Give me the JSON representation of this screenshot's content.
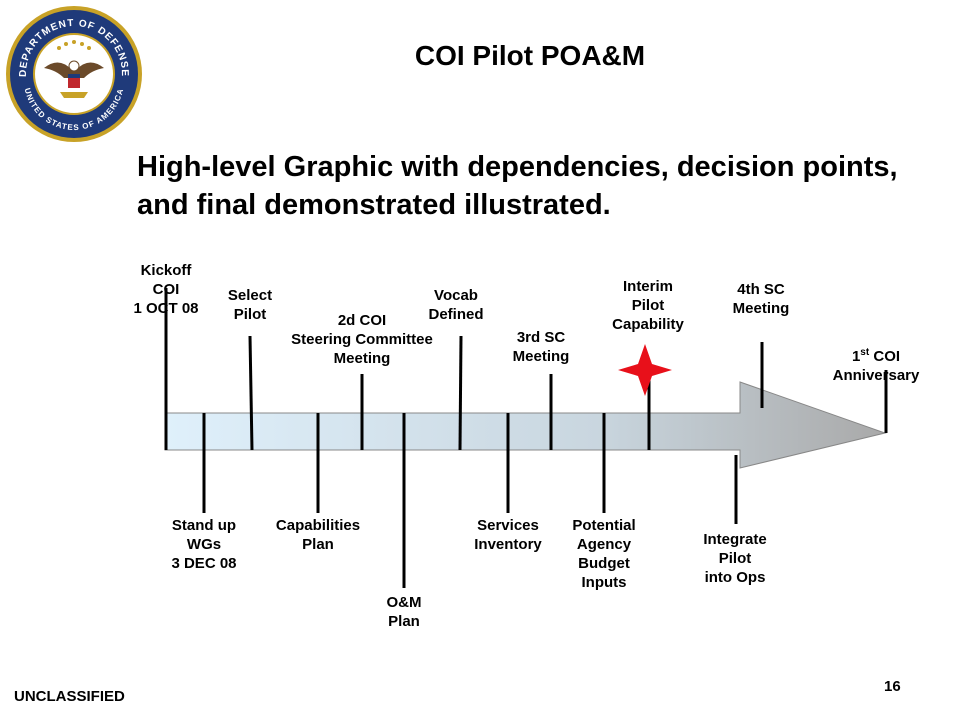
{
  "header": {
    "title": "COI Pilot POA&M",
    "subtitle": "High-level Graphic with dependencies, decision points, and final demonstrated illustrated."
  },
  "seal": {
    "text_top": "DEPARTMENT OF DEFENSE",
    "text_bottom": "UNITED STATES OF AMERICA"
  },
  "milestones_above": [
    {
      "label": "Kickoff\nCOI\n1 OCT 08"
    },
    {
      "label": "Select\nPilot"
    },
    {
      "label": "2d COI\nSteering Committee\nMeeting"
    },
    {
      "label": "Vocab\nDefined"
    },
    {
      "label": "3rd SC\nMeeting"
    },
    {
      "label": "Interim\nPilot\nCapability"
    },
    {
      "label": "4th SC\nMeeting"
    },
    {
      "label_main": "COI\nAnniversary",
      "label_prefix": "1",
      "label_sup": "st"
    }
  ],
  "milestones_below": [
    {
      "label": "Stand up\nWGs\n3 DEC 08"
    },
    {
      "label": "Capabilities\nPlan"
    },
    {
      "label": "O&M\nPlan"
    },
    {
      "label": "Services\nInventory"
    },
    {
      "label": "Potential\nAgency\nBudget\nInputs"
    },
    {
      "label": "Integrate\nPilot\ninto Ops"
    }
  ],
  "footer": {
    "classification": "UNCLASSIFIED",
    "page_number": "16"
  },
  "colors": {
    "arrow_start": "#dff0fb",
    "arrow_end": "#a9a9a9",
    "star": "#e8101a"
  }
}
